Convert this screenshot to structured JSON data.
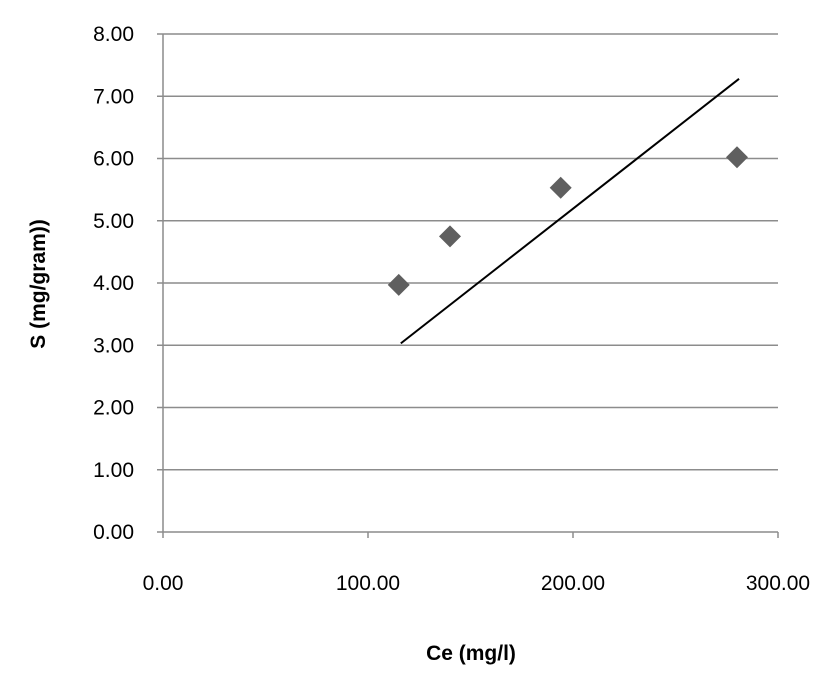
{
  "chart_data": {
    "type": "scatter",
    "title": "",
    "xlabel": "Ce (mg/l)",
    "ylabel": "S (mg/gram))",
    "xlim": [
      0,
      300
    ],
    "ylim": [
      0,
      8
    ],
    "x_ticks": [
      "0.00",
      "100.00",
      "200.00",
      "300.00"
    ],
    "y_ticks": [
      "0.00",
      "1.00",
      "2.00",
      "3.00",
      "4.00",
      "5.00",
      "6.00",
      "7.00",
      "8.00"
    ],
    "grid": "horizontal",
    "legend": "none",
    "series": [
      {
        "marker": "diamond",
        "color": "#5f5f5f",
        "points": [
          {
            "x": 115,
            "y": 3.97
          },
          {
            "x": 140,
            "y": 4.75
          },
          {
            "x": 194,
            "y": 5.53
          },
          {
            "x": 280,
            "y": 6.02
          }
        ]
      }
    ],
    "trendline": {
      "color": "#000000",
      "points": [
        {
          "x": 116,
          "y": 3.03
        },
        {
          "x": 281,
          "y": 7.28
        }
      ]
    }
  }
}
